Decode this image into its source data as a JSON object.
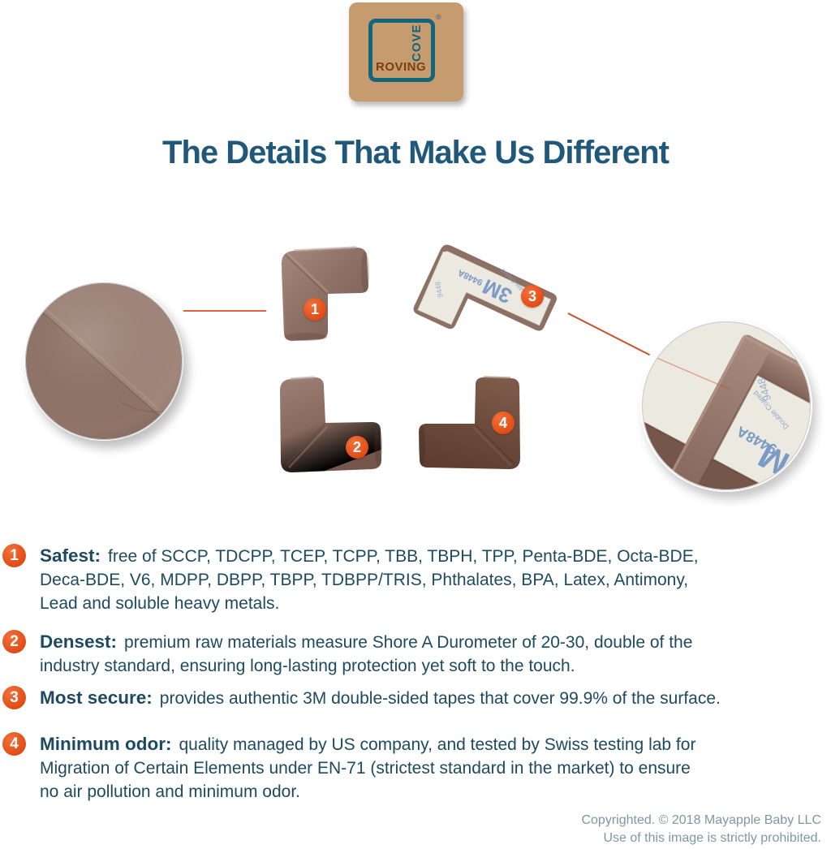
{
  "logo": {
    "brand_bottom": "ROVING",
    "brand_side": "COVE",
    "registered": "®"
  },
  "title": "The Details That Make Us Different",
  "markers": [
    "1",
    "2",
    "3",
    "4"
  ],
  "tape": {
    "brand": "3M",
    "code": "9448A",
    "desc": "Double Coated",
    "frag": "9448"
  },
  "features": [
    {
      "num": "1",
      "label": "Safest:",
      "lines": [
        "free of SCCP, TDCPP, TCEP, TCPP, TBB, TBPH, TPP, Penta-BDE, Octa-BDE,",
        "Deca-BDE, V6, MDPP, DBPP, TBPP, TDBPP/TRIS, Phthalates, BPA, Latex, Antimony,",
        "Lead and soluble heavy metals."
      ]
    },
    {
      "num": "2",
      "label": "Densest:",
      "lines": [
        "premium raw materials measure Shore A Durometer of 20-30, double of the",
        "industry standard, ensuring long-lasting protection yet soft to the touch."
      ]
    },
    {
      "num": "3",
      "label": "Most secure:",
      "lines": [
        "provides authentic 3M double-sided tapes that cover 99.9% of the surface."
      ]
    },
    {
      "num": "4",
      "label": "Minimum odor:",
      "lines": [
        "quality managed by US company, and tested by Swiss testing lab for",
        "Migration of Certain Elements under EN-71 (strictest standard in the market) to ensure",
        "no air pollution and minimum odor."
      ]
    }
  ],
  "footer": {
    "line1": "Copyrighted. © 2018 Mayapple Baby LLC",
    "line2": "Use of this image is strictly prohibited."
  },
  "colors": {
    "accent_orange": "#e8511c",
    "heading_teal": "#20587a",
    "body_text": "#1d4a60",
    "logo_tan": "#c59b6f",
    "logo_teal": "#13657c",
    "logo_brown": "#7b3f10",
    "callout_line": "#e0623e",
    "copyright_gray": "#7f97a4"
  }
}
